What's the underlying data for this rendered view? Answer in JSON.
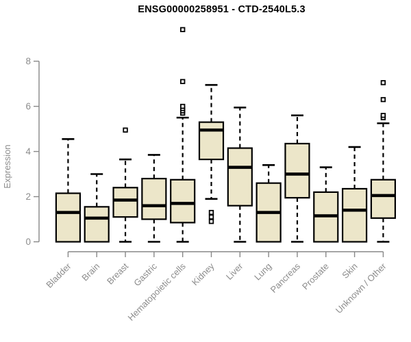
{
  "title": "ENSG00000258951 - CTD-2540L5.3",
  "colors": {
    "box_fill": "#ECE6C9",
    "box_stroke": "#000000",
    "median": "#000000",
    "whisker": "#000000",
    "outlier_stroke": "#000000",
    "outlier_fill": "#ffffff",
    "axis": "#878787",
    "tick_label": "#8c8c8c",
    "title_color": "#000000",
    "background": "#ffffff"
  },
  "chart_data": {
    "type": "boxplot",
    "title": "ENSG00000258951 - CTD-2540L5.3",
    "xlabel": "",
    "ylabel": "Expression",
    "ylim": [
      0,
      8
    ],
    "yticks": [
      0,
      2,
      4,
      6,
      8
    ],
    "grid": false,
    "legend": "none",
    "categories": [
      "Bladder",
      "Brain",
      "Breast",
      "Gastric",
      "Hematopoietic cells",
      "Kidney",
      "Liver",
      "Lung",
      "Pancreas",
      "Prostate",
      "Skin",
      "Unknown / Other"
    ],
    "series": [
      {
        "name": "Bladder",
        "min": 0,
        "q1": 0,
        "median": 1.3,
        "q3": 2.15,
        "max": 4.55,
        "outliers": []
      },
      {
        "name": "Brain",
        "min": 0,
        "q1": 0,
        "median": 1.05,
        "q3": 1.55,
        "max": 3.0,
        "outliers": []
      },
      {
        "name": "Breast",
        "min": 0,
        "q1": 1.1,
        "median": 1.85,
        "q3": 2.4,
        "max": 3.65,
        "outliers": [
          4.95
        ]
      },
      {
        "name": "Gastric",
        "min": 0,
        "q1": 1.0,
        "median": 1.6,
        "q3": 2.8,
        "max": 3.85,
        "outliers": []
      },
      {
        "name": "Hematopoietic cells",
        "min": 0,
        "q1": 0.85,
        "median": 1.7,
        "q3": 2.75,
        "max": 5.5,
        "outliers": [
          5.7,
          5.8,
          5.9,
          6.0,
          7.1,
          9.4
        ]
      },
      {
        "name": "Kidney",
        "min": 1.9,
        "q1": 3.65,
        "median": 4.95,
        "q3": 5.3,
        "max": 6.95,
        "outliers": [
          1.3,
          1.1,
          0.9
        ]
      },
      {
        "name": "Liver",
        "min": 0,
        "q1": 1.6,
        "median": 3.3,
        "q3": 4.15,
        "max": 5.95,
        "outliers": []
      },
      {
        "name": "Lung",
        "min": 0,
        "q1": 0,
        "median": 1.3,
        "q3": 2.6,
        "max": 3.4,
        "outliers": []
      },
      {
        "name": "Pancreas",
        "min": 0,
        "q1": 1.95,
        "median": 3.0,
        "q3": 4.35,
        "max": 5.6,
        "outliers": []
      },
      {
        "name": "Prostate",
        "min": 0,
        "q1": 0,
        "median": 1.15,
        "q3": 2.2,
        "max": 3.3,
        "outliers": []
      },
      {
        "name": "Skin",
        "min": 0,
        "q1": 0,
        "median": 1.4,
        "q3": 2.35,
        "max": 4.2,
        "outliers": []
      },
      {
        "name": "Unknown / Other",
        "min": 0,
        "q1": 1.05,
        "median": 2.05,
        "q3": 2.75,
        "max": 5.25,
        "outliers": [
          5.5,
          5.6,
          6.3,
          7.05
        ]
      }
    ]
  }
}
